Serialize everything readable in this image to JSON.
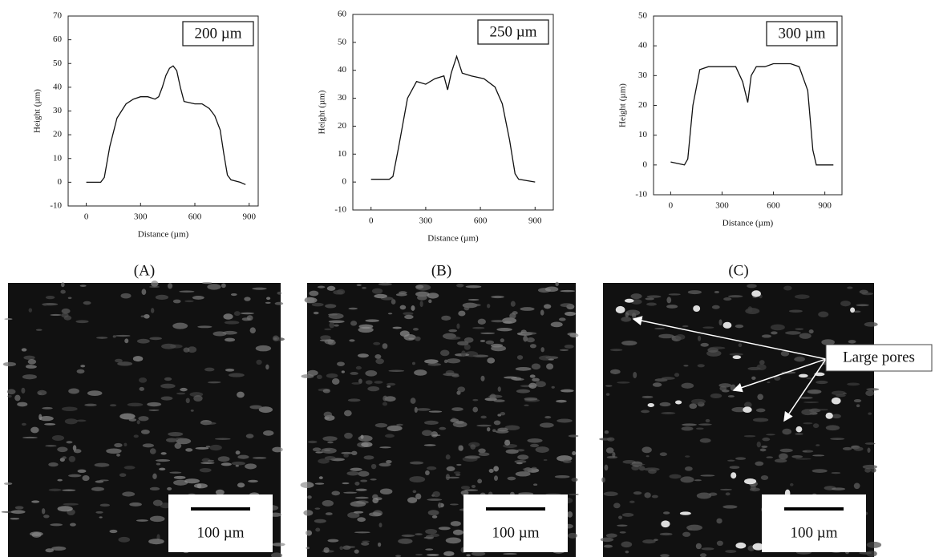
{
  "chart_data": [
    {
      "type": "line",
      "annotation": "200 µm",
      "xlabel": "Distance (µm)",
      "ylabel": "Height (µm)",
      "xlim": [
        -100,
        950
      ],
      "xticks": [
        0,
        300,
        600,
        900
      ],
      "ylim": [
        -10,
        70
      ],
      "yticks": [
        -10,
        0,
        10,
        20,
        30,
        40,
        50,
        60,
        70
      ],
      "color": "#111111",
      "x": [
        0,
        80,
        100,
        130,
        170,
        220,
        260,
        300,
        340,
        380,
        400,
        420,
        440,
        460,
        480,
        500,
        520,
        540,
        600,
        640,
        680,
        710,
        740,
        760,
        780,
        800,
        850,
        880
      ],
      "values": [
        0,
        0,
        2,
        15,
        27,
        33,
        35,
        36,
        36,
        35,
        36,
        40,
        45,
        48,
        49,
        47,
        40,
        34,
        33,
        33,
        31,
        28,
        22,
        12,
        3,
        1,
        0,
        -1
      ]
    },
    {
      "type": "line",
      "annotation": "250 µm",
      "xlabel": "Distance (µm)",
      "ylabel": "Height (µm)",
      "xlim": [
        -100,
        1000
      ],
      "xticks": [
        0,
        300,
        600,
        900
      ],
      "ylim": [
        -10,
        60
      ],
      "yticks": [
        -10,
        0,
        10,
        20,
        30,
        40,
        50,
        60
      ],
      "color": "#111111",
      "x": [
        0,
        100,
        120,
        150,
        200,
        250,
        300,
        350,
        400,
        420,
        440,
        470,
        500,
        550,
        620,
        680,
        720,
        760,
        790,
        810,
        900
      ],
      "values": [
        1,
        1,
        2,
        12,
        30,
        36,
        35,
        37,
        38,
        33,
        39,
        45,
        39,
        38,
        37,
        34,
        28,
        15,
        3,
        1,
        0
      ]
    },
    {
      "type": "line",
      "annotation": "300 µm",
      "xlabel": "Distance (µm)",
      "ylabel": "Height (µm)",
      "xlim": [
        -100,
        1000
      ],
      "xticks": [
        0,
        300,
        600,
        900
      ],
      "ylim": [
        -10,
        50
      ],
      "yticks": [
        -10,
        0,
        10,
        20,
        30,
        40,
        50
      ],
      "color": "#111111",
      "x": [
        0,
        80,
        100,
        130,
        170,
        220,
        300,
        380,
        420,
        450,
        470,
        500,
        550,
        600,
        650,
        700,
        750,
        800,
        830,
        850,
        950
      ],
      "values": [
        1,
        0,
        2,
        20,
        32,
        33,
        33,
        33,
        28,
        21,
        30,
        33,
        33,
        34,
        34,
        34,
        33,
        25,
        5,
        0,
        0
      ]
    }
  ],
  "panels": [
    {
      "label": "(A)",
      "scale_bar": "100 µm"
    },
    {
      "label": "(B)",
      "scale_bar": "100 µm"
    },
    {
      "label": "(C)",
      "scale_bar": "100 µm"
    }
  ],
  "annotation": "Large pores"
}
